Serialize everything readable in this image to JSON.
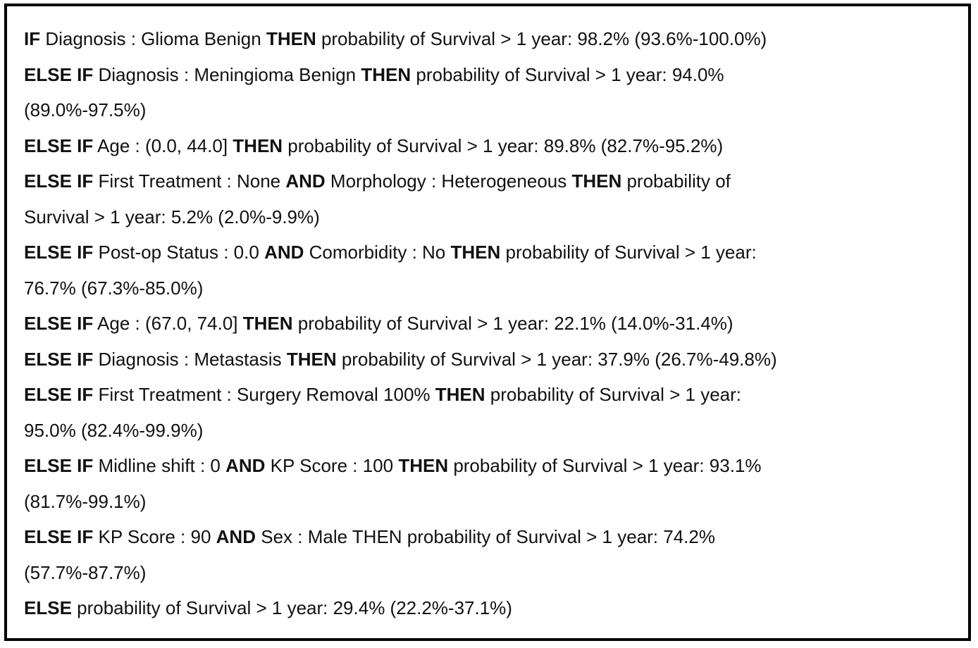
{
  "rules": [
    [
      {
        "text": "IF",
        "bold": true
      },
      {
        "text": " Diagnosis : Glioma Benign ",
        "bold": false
      },
      {
        "text": "THEN",
        "bold": true
      },
      {
        "text": " probability of Survival > 1 year: 98.2% (93.6%-100.0%)",
        "bold": false
      }
    ],
    [
      {
        "text": "ELSE IF",
        "bold": true
      },
      {
        "text": " Diagnosis : Meningioma Benign ",
        "bold": false
      },
      {
        "text": "THEN",
        "bold": true
      },
      {
        "text": " probability of Survival > 1 year: 94.0%",
        "bold": false
      }
    ],
    [
      {
        "text": "(89.0%-97.5%)",
        "bold": false
      }
    ],
    [
      {
        "text": "ELSE IF",
        "bold": true
      },
      {
        "text": " Age : (0.0, 44.0] ",
        "bold": false
      },
      {
        "text": "THEN",
        "bold": true
      },
      {
        "text": " probability of Survival > 1 year: 89.8% (82.7%-95.2%)",
        "bold": false
      }
    ],
    [
      {
        "text": "ELSE IF",
        "bold": true
      },
      {
        "text": " First Treatment : None ",
        "bold": false
      },
      {
        "text": "AND",
        "bold": true
      },
      {
        "text": " Morphology : Heterogeneous ",
        "bold": false
      },
      {
        "text": "THEN",
        "bold": true
      },
      {
        "text": " probability of",
        "bold": false
      }
    ],
    [
      {
        "text": "Survival > 1 year: 5.2% (2.0%-9.9%)",
        "bold": false
      }
    ],
    [
      {
        "text": "ELSE IF",
        "bold": true
      },
      {
        "text": " Post-op Status : 0.0 ",
        "bold": false
      },
      {
        "text": "AND",
        "bold": true
      },
      {
        "text": " Comorbidity : No ",
        "bold": false
      },
      {
        "text": "THEN",
        "bold": true
      },
      {
        "text": " probability of Survival > 1 year:",
        "bold": false
      }
    ],
    [
      {
        "text": "76.7% (67.3%-85.0%)",
        "bold": false
      }
    ],
    [
      {
        "text": "ELSE IF",
        "bold": true
      },
      {
        "text": " Age : (67.0, 74.0] ",
        "bold": false
      },
      {
        "text": "THEN",
        "bold": true
      },
      {
        "text": " probability of Survival > 1 year: 22.1% (14.0%-31.4%)",
        "bold": false
      }
    ],
    [
      {
        "text": "ELSE IF",
        "bold": true
      },
      {
        "text": " Diagnosis : Metastasis ",
        "bold": false
      },
      {
        "text": "THEN",
        "bold": true
      },
      {
        "text": " probability of Survival > 1 year: 37.9% (26.7%-49.8%)",
        "bold": false
      }
    ],
    [
      {
        "text": "ELSE IF",
        "bold": true
      },
      {
        "text": " First Treatment : Surgery Removal 100% ",
        "bold": false
      },
      {
        "text": "THEN",
        "bold": true
      },
      {
        "text": " probability of Survival > 1 year:",
        "bold": false
      }
    ],
    [
      {
        "text": "95.0% (82.4%-99.9%)",
        "bold": false
      }
    ],
    [
      {
        "text": "ELSE IF",
        "bold": true
      },
      {
        "text": " Midline shift : 0 ",
        "bold": false
      },
      {
        "text": "AND",
        "bold": true
      },
      {
        "text": " KP Score : 100 ",
        "bold": false
      },
      {
        "text": "THEN",
        "bold": true
      },
      {
        "text": " probability of Survival > 1 year: 93.1%",
        "bold": false
      }
    ],
    [
      {
        "text": "(81.7%-99.1%)",
        "bold": false
      }
    ],
    [
      {
        "text": "ELSE IF",
        "bold": true
      },
      {
        "text": " KP Score : 90 ",
        "bold": false
      },
      {
        "text": "AND",
        "bold": true
      },
      {
        "text": " Sex : Male THEN probability of Survival > 1 year: 74.2%",
        "bold": false
      }
    ],
    [
      {
        "text": "(57.7%-87.7%)",
        "bold": false
      }
    ],
    [
      {
        "text": "ELSE",
        "bold": true
      },
      {
        "text": " probability of Survival > 1 year: 29.4% (22.2%-37.1%)",
        "bold": false
      }
    ]
  ]
}
